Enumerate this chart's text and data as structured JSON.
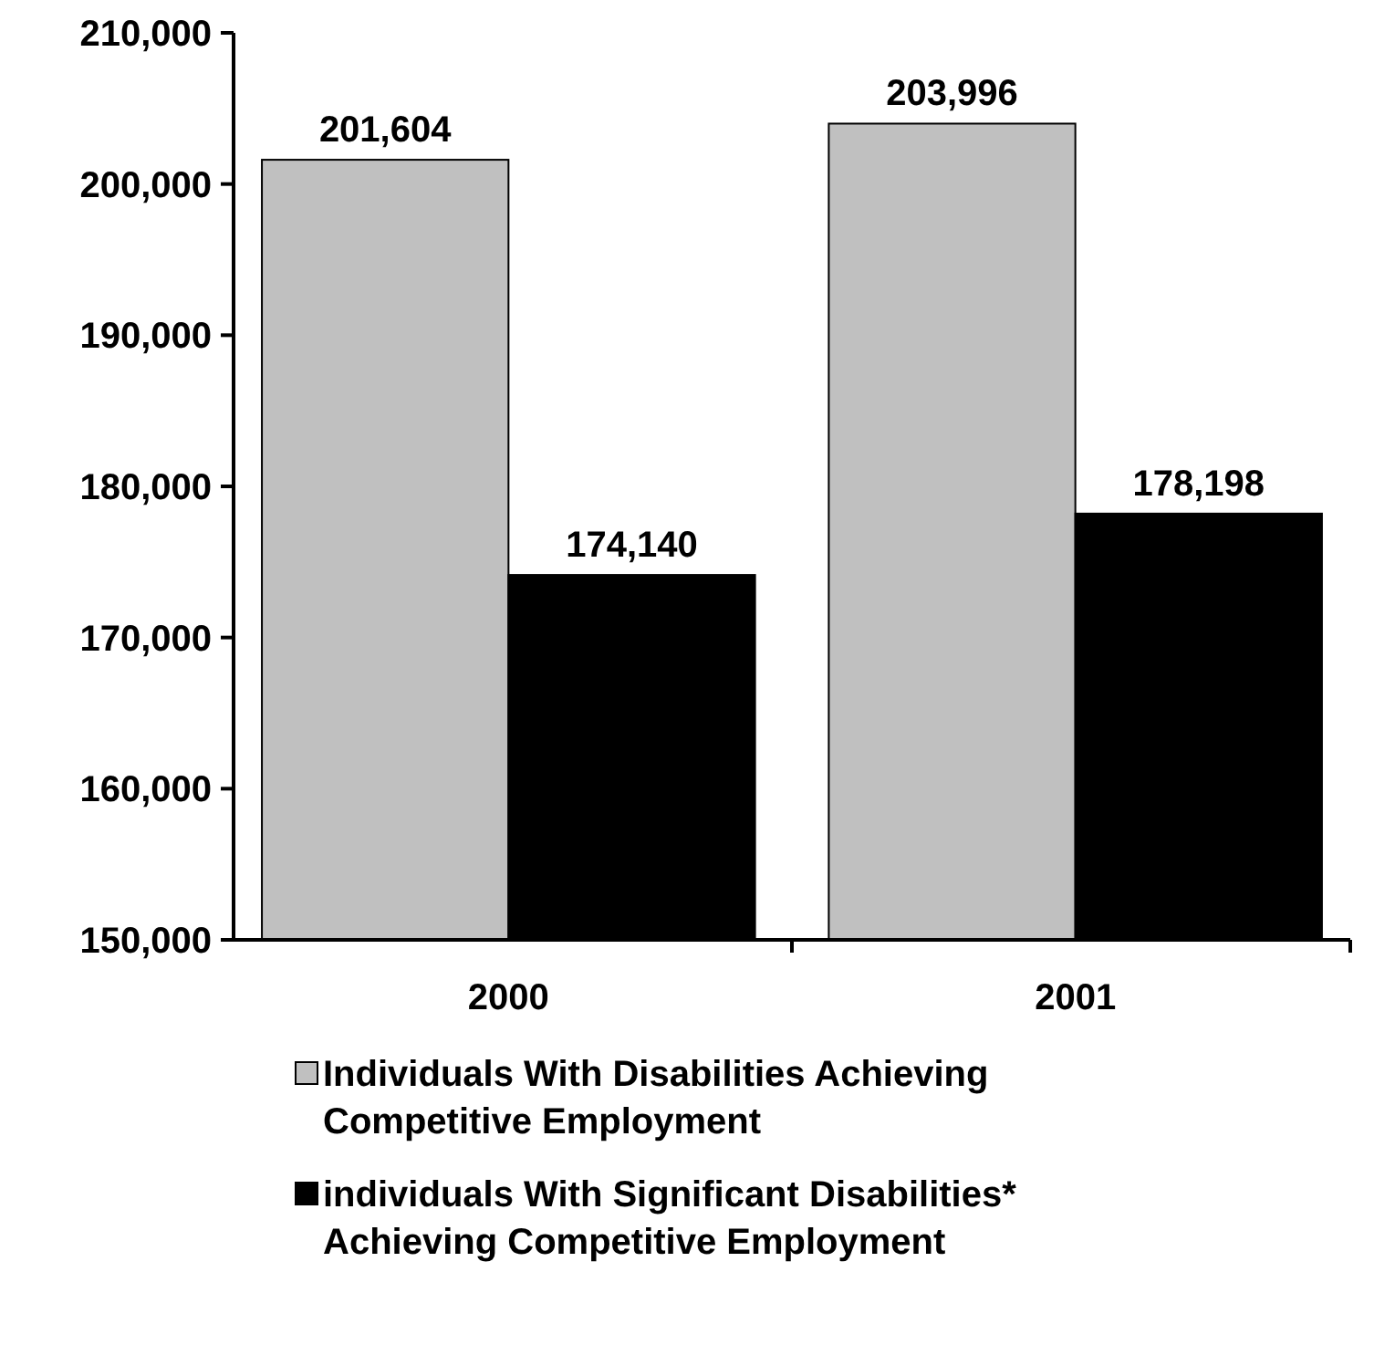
{
  "chart_data": {
    "type": "bar",
    "categories": [
      "2000",
      "2001"
    ],
    "series": [
      {
        "name": "Individuals With Disabilities Achieving Competitive Employment",
        "color": "#c0c0c0",
        "values": [
          201604,
          203996
        ]
      },
      {
        "name": "individuals With Significant Disabilities* Achieving Competitive Employment",
        "color": "#000000",
        "values": [
          174140,
          178198
        ]
      }
    ],
    "ylim": [
      150000,
      210000
    ],
    "yticks": [
      {
        "value": 150000,
        "label": "150,000"
      },
      {
        "value": 160000,
        "label": "160,000"
      },
      {
        "value": 170000,
        "label": "170,000"
      },
      {
        "value": 180000,
        "label": "180,000"
      },
      {
        "value": 190000,
        "label": "190,000"
      },
      {
        "value": 200000,
        "label": "200,000"
      },
      {
        "value": 210000,
        "label": "210,000"
      }
    ],
    "value_labels": [
      [
        "201,604",
        "203,996"
      ],
      [
        "174,140",
        "178,198"
      ]
    ],
    "grid": false,
    "legend": "bottom"
  }
}
